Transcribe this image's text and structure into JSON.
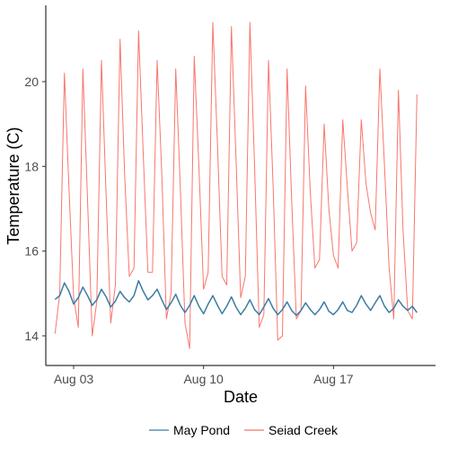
{
  "chart_data": {
    "type": "line",
    "title": "",
    "xlabel": "Date",
    "ylabel": "Temperature (C)",
    "x_range": [
      "2022-08-01T12:00",
      "2022-08-22T12:00"
    ],
    "ylim": [
      13.3,
      21.8
    ],
    "grid": false,
    "legend_position": "bottom",
    "x_ticks": [
      {
        "date": "2022-08-03",
        "label": "Aug 03"
      },
      {
        "date": "2022-08-10",
        "label": "Aug 10"
      },
      {
        "date": "2022-08-17",
        "label": "Aug 17"
      }
    ],
    "y_ticks": [
      {
        "value": 14,
        "label": "14"
      },
      {
        "value": 16,
        "label": "16"
      },
      {
        "value": 18,
        "label": "18"
      },
      {
        "value": 20,
        "label": "20"
      }
    ],
    "series": [
      {
        "name": "May Pond",
        "color": "#3a7ca5",
        "x": [
          "2022-08-02T00:00",
          "2022-08-02T06:00",
          "2022-08-02T12:00",
          "2022-08-02T18:00",
          "2022-08-03T00:00",
          "2022-08-03T06:00",
          "2022-08-03T12:00",
          "2022-08-03T18:00",
          "2022-08-04T00:00",
          "2022-08-04T06:00",
          "2022-08-04T12:00",
          "2022-08-04T18:00",
          "2022-08-05T00:00",
          "2022-08-05T06:00",
          "2022-08-05T12:00",
          "2022-08-05T18:00",
          "2022-08-06T00:00",
          "2022-08-06T06:00",
          "2022-08-06T12:00",
          "2022-08-06T18:00",
          "2022-08-07T00:00",
          "2022-08-07T06:00",
          "2022-08-07T12:00",
          "2022-08-07T18:00",
          "2022-08-08T00:00",
          "2022-08-08T06:00",
          "2022-08-08T12:00",
          "2022-08-08T18:00",
          "2022-08-09T00:00",
          "2022-08-09T06:00",
          "2022-08-09T12:00",
          "2022-08-09T18:00",
          "2022-08-10T00:00",
          "2022-08-10T06:00",
          "2022-08-10T12:00",
          "2022-08-10T18:00",
          "2022-08-11T00:00",
          "2022-08-11T06:00",
          "2022-08-11T12:00",
          "2022-08-11T18:00",
          "2022-08-12T00:00",
          "2022-08-12T06:00",
          "2022-08-12T12:00",
          "2022-08-12T18:00",
          "2022-08-13T00:00",
          "2022-08-13T06:00",
          "2022-08-13T12:00",
          "2022-08-13T18:00",
          "2022-08-14T00:00",
          "2022-08-14T06:00",
          "2022-08-14T12:00",
          "2022-08-14T18:00",
          "2022-08-15T00:00",
          "2022-08-15T06:00",
          "2022-08-15T12:00",
          "2022-08-15T18:00",
          "2022-08-16T00:00",
          "2022-08-16T06:00",
          "2022-08-16T12:00",
          "2022-08-16T18:00",
          "2022-08-17T00:00",
          "2022-08-17T06:00",
          "2022-08-17T12:00",
          "2022-08-17T18:00",
          "2022-08-18T00:00",
          "2022-08-18T06:00",
          "2022-08-18T12:00",
          "2022-08-18T18:00",
          "2022-08-19T00:00",
          "2022-08-19T06:00",
          "2022-08-19T12:00",
          "2022-08-19T18:00",
          "2022-08-20T00:00",
          "2022-08-20T06:00",
          "2022-08-20T12:00",
          "2022-08-20T18:00",
          "2022-08-21T00:00",
          "2022-08-21T06:00",
          "2022-08-21T12:00"
        ],
        "values": [
          14.86,
          14.95,
          15.25,
          15.05,
          14.75,
          14.9,
          15.15,
          14.95,
          14.72,
          14.85,
          15.1,
          14.92,
          14.68,
          14.82,
          15.05,
          14.9,
          14.8,
          14.95,
          15.3,
          15.05,
          14.85,
          14.95,
          15.1,
          14.85,
          14.62,
          14.78,
          14.98,
          14.72,
          14.55,
          14.72,
          14.95,
          14.7,
          14.52,
          14.75,
          14.95,
          14.72,
          14.52,
          14.7,
          14.92,
          14.68,
          14.5,
          14.65,
          14.85,
          14.62,
          14.5,
          14.68,
          14.88,
          14.65,
          14.5,
          14.62,
          14.8,
          14.6,
          14.48,
          14.6,
          14.78,
          14.62,
          14.5,
          14.62,
          14.8,
          14.58,
          14.5,
          14.62,
          14.8,
          14.6,
          14.55,
          14.72,
          14.95,
          14.75,
          14.6,
          14.78,
          14.95,
          14.7,
          14.55,
          14.65,
          14.85,
          14.7,
          14.6,
          14.7,
          14.55
        ]
      },
      {
        "name": "Seiad Creek",
        "color": "#f8766d",
        "x": [
          "2022-08-02T00:00",
          "2022-08-02T06:00",
          "2022-08-02T12:00",
          "2022-08-02T18:00",
          "2022-08-03T00:00",
          "2022-08-03T06:00",
          "2022-08-03T12:00",
          "2022-08-03T18:00",
          "2022-08-04T00:00",
          "2022-08-04T06:00",
          "2022-08-04T12:00",
          "2022-08-04T18:00",
          "2022-08-05T00:00",
          "2022-08-05T06:00",
          "2022-08-05T12:00",
          "2022-08-05T18:00",
          "2022-08-06T00:00",
          "2022-08-06T06:00",
          "2022-08-06T12:00",
          "2022-08-06T18:00",
          "2022-08-07T00:00",
          "2022-08-07T06:00",
          "2022-08-07T12:00",
          "2022-08-07T18:00",
          "2022-08-08T00:00",
          "2022-08-08T06:00",
          "2022-08-08T12:00",
          "2022-08-08T18:00",
          "2022-08-09T00:00",
          "2022-08-09T06:00",
          "2022-08-09T12:00",
          "2022-08-09T18:00",
          "2022-08-10T00:00",
          "2022-08-10T06:00",
          "2022-08-10T12:00",
          "2022-08-10T18:00",
          "2022-08-11T00:00",
          "2022-08-11T06:00",
          "2022-08-11T12:00",
          "2022-08-11T18:00",
          "2022-08-12T00:00",
          "2022-08-12T06:00",
          "2022-08-12T12:00",
          "2022-08-12T18:00",
          "2022-08-13T00:00",
          "2022-08-13T06:00",
          "2022-08-13T12:00",
          "2022-08-13T18:00",
          "2022-08-14T00:00",
          "2022-08-14T06:00",
          "2022-08-14T12:00",
          "2022-08-14T18:00",
          "2022-08-15T00:00",
          "2022-08-15T06:00",
          "2022-08-15T12:00",
          "2022-08-15T18:00",
          "2022-08-16T00:00",
          "2022-08-16T06:00",
          "2022-08-16T12:00",
          "2022-08-16T18:00",
          "2022-08-17T00:00",
          "2022-08-17T06:00",
          "2022-08-17T12:00",
          "2022-08-17T18:00",
          "2022-08-18T00:00",
          "2022-08-18T06:00",
          "2022-08-18T12:00",
          "2022-08-18T18:00",
          "2022-08-19T00:00",
          "2022-08-19T06:00",
          "2022-08-19T12:00",
          "2022-08-19T18:00",
          "2022-08-20T00:00",
          "2022-08-20T06:00",
          "2022-08-20T12:00",
          "2022-08-20T18:00",
          "2022-08-21T00:00",
          "2022-08-21T06:00",
          "2022-08-21T12:00"
        ],
        "values": [
          14.05,
          15.0,
          20.2,
          17.5,
          14.9,
          14.2,
          20.3,
          17.2,
          14.0,
          14.8,
          20.5,
          17.3,
          14.3,
          15.2,
          21.0,
          17.8,
          15.4,
          15.6,
          21.2,
          18.3,
          15.5,
          15.5,
          20.5,
          17.8,
          14.4,
          15.0,
          20.3,
          17.5,
          14.3,
          13.7,
          20.6,
          18.0,
          15.1,
          15.5,
          21.4,
          18.5,
          15.4,
          15.2,
          21.3,
          18.2,
          14.9,
          15.4,
          21.4,
          18.0,
          14.2,
          14.5,
          20.5,
          17.5,
          13.9,
          14.0,
          20.3,
          17.2,
          14.4,
          14.6,
          19.9,
          17.4,
          15.6,
          15.8,
          19.0,
          17.0,
          15.9,
          15.6,
          19.1,
          17.5,
          16.0,
          16.2,
          19.1,
          17.6,
          16.9,
          16.5,
          20.3,
          18.0,
          15.6,
          14.4,
          19.8,
          16.5,
          14.6,
          14.4,
          19.7
        ]
      }
    ]
  }
}
